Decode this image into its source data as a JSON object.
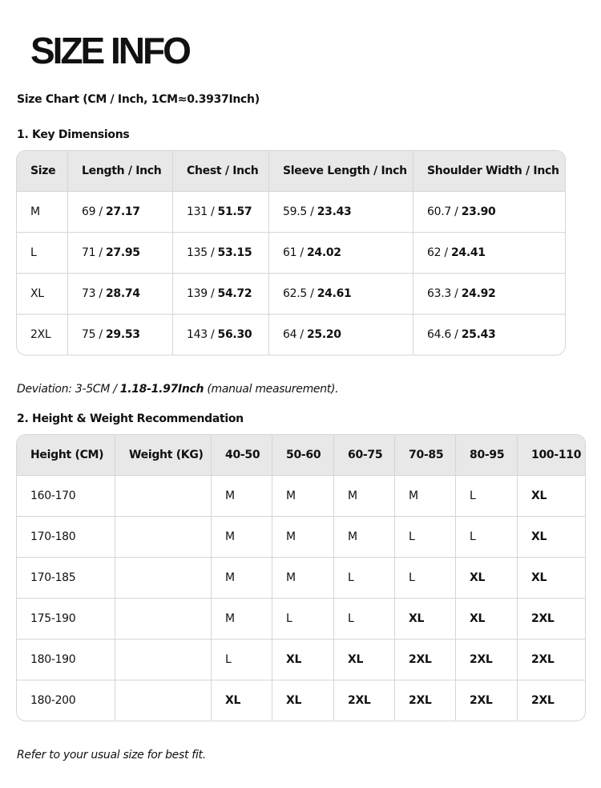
{
  "title": "SIZE INFO",
  "subtitle": "Size Chart (CM / Inch, 1CM≈0.3937Inch)",
  "section1": "1. Key Dimensions",
  "table1": {
    "headers": [
      "Size",
      "Length / Inch",
      "Chest / Inch",
      "Sleeve Length / Inch",
      "Shoulder Width / Inch"
    ],
    "rows": [
      [
        "M",
        [
          "69",
          "27.17"
        ],
        [
          "131",
          "51.57"
        ],
        [
          "59.5",
          "23.43"
        ],
        [
          "60.7",
          "23.90"
        ]
      ],
      [
        "L",
        [
          "71",
          "27.95"
        ],
        [
          "135",
          "53.15"
        ],
        [
          "61",
          "24.02"
        ],
        [
          "62",
          "24.41"
        ]
      ],
      [
        "XL",
        [
          "73",
          "28.74"
        ],
        [
          "139",
          "54.72"
        ],
        [
          "62.5",
          "24.61"
        ],
        [
          "63.3",
          "24.92"
        ]
      ],
      [
        "2XL",
        [
          "75",
          "29.53"
        ],
        [
          "143",
          "56.30"
        ],
        [
          "64",
          "25.20"
        ],
        [
          "64.6",
          "25.43"
        ]
      ]
    ]
  },
  "deviation": {
    "prefix": "Deviation: 3-5CM / ",
    "bold": "1.18-1.97Inch",
    "suffix": " (manual measurement)."
  },
  "section2": "2. Height & Weight Recommendation",
  "table2": {
    "headers": [
      "Height (CM)",
      "Weight (KG)",
      "40-50",
      "50-60",
      "60-75",
      "70-85",
      "80-95",
      "100-110"
    ],
    "rows": [
      [
        "160-170",
        "",
        "M",
        "M",
        "M",
        "M",
        "L",
        "XL"
      ],
      [
        "170-180",
        "",
        "M",
        "M",
        "M",
        "L",
        "L",
        "XL"
      ],
      [
        "170-185",
        "",
        "M",
        "M",
        "L",
        "L",
        "XL",
        "XL"
      ],
      [
        "175-190",
        "",
        "M",
        "L",
        "L",
        "XL",
        "XL",
        "2XL"
      ],
      [
        "180-190",
        "",
        "L",
        "XL",
        "XL",
        "2XL",
        "2XL",
        "2XL"
      ],
      [
        "180-200",
        "",
        "XL",
        "XL",
        "2XL",
        "2XL",
        "2XL",
        "2XL"
      ]
    ]
  },
  "footer": "Refer to your usual size for best fit."
}
